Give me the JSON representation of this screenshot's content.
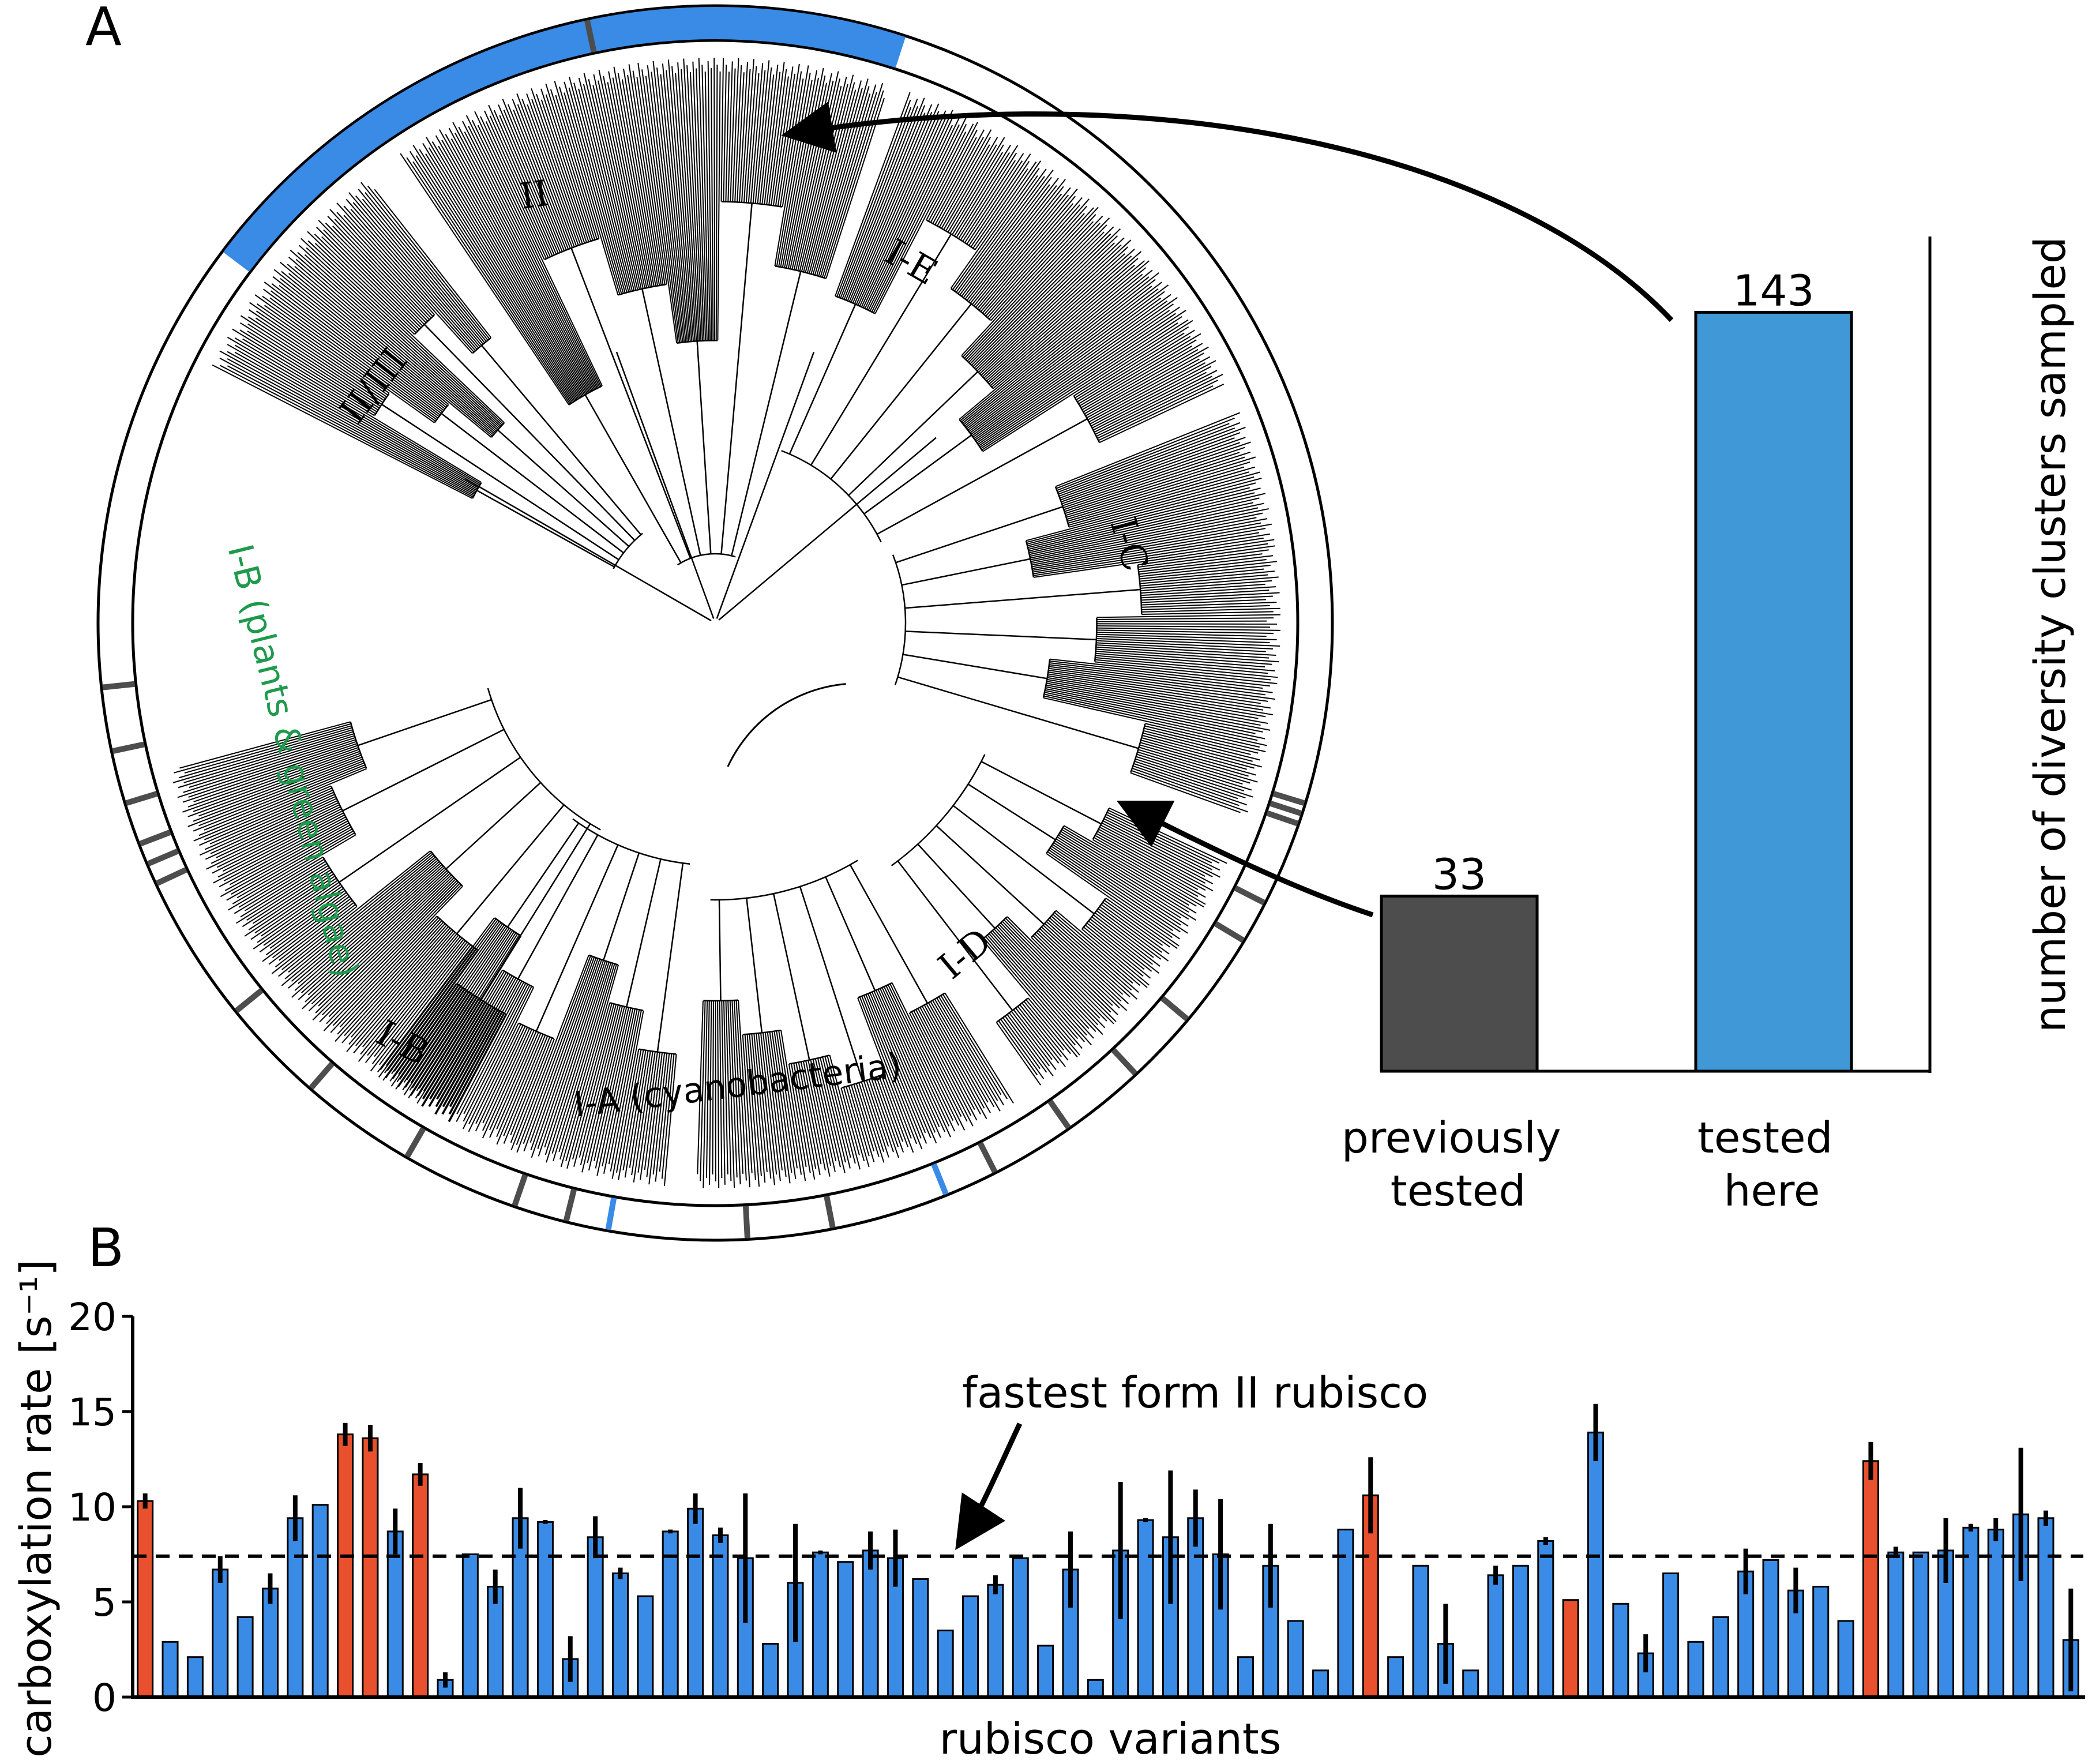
{
  "panel_a": {
    "letter": "A",
    "clade_labels": [
      "II",
      "II/III",
      "I-E",
      "I-C",
      "I-D",
      "I-B",
      "I-A (cyanobacteria)",
      "I-B (plants & green algae)"
    ],
    "colors": {
      "sampled_here": "#3a8be6",
      "previously_tested": "#4d4d4d",
      "plants_label": "#1f9a4c"
    }
  },
  "panel_b": {
    "letter": "B",
    "annotation": "fastest form II rubisco"
  },
  "chart_data": [
    {
      "type": "bar",
      "categories": [
        "previously tested",
        "tested here"
      ],
      "values": [
        33,
        143
      ],
      "data_labels": [
        "33",
        "143"
      ],
      "colors": [
        "#4d4d4d",
        "#4099d6"
      ],
      "ylabel": "number of diversity clusters sampled",
      "ylim": [
        0,
        150
      ]
    },
    {
      "type": "bar",
      "xlabel": "rubisco variants",
      "ylabel": "carboxylation rate [s⁻¹]",
      "ylim": [
        0,
        20
      ],
      "yticks": [
        0,
        5,
        10,
        15,
        20
      ],
      "reference_line": 7.4,
      "series_colors": {
        "r": "#e8502e",
        "b": "#3a8be6"
      },
      "values": [
        10.3,
        2.9,
        2.1,
        6.7,
        4.2,
        5.7,
        9.4,
        10.1,
        13.8,
        13.6,
        8.7,
        11.7,
        0.9,
        7.5,
        5.8,
        9.4,
        9.2,
        2.0,
        8.4,
        6.5,
        5.3,
        8.7,
        9.9,
        8.5,
        7.3,
        2.8,
        6.0,
        7.6,
        7.1,
        7.7,
        7.3,
        6.2,
        3.5,
        5.3,
        5.9,
        7.3,
        2.7,
        6.7,
        0.9,
        7.7,
        9.3,
        8.4,
        9.4,
        7.5,
        2.1,
        6.9,
        4.0,
        1.4,
        8.8,
        10.6,
        2.1,
        6.9,
        2.8,
        1.4,
        6.4,
        6.9,
        8.2,
        5.1,
        13.9,
        4.9,
        2.3,
        6.5,
        2.9,
        4.2,
        6.6,
        7.2,
        5.6,
        5.8,
        4.0,
        12.4,
        7.6,
        7.6,
        7.7,
        8.9,
        8.8,
        9.6,
        9.4,
        3.0
      ],
      "errors": [
        0.4,
        0,
        0,
        0.7,
        0,
        0.8,
        1.2,
        0,
        0.6,
        0.7,
        1.2,
        0.6,
        0.4,
        0,
        0.9,
        1.6,
        0.1,
        1.2,
        1.1,
        0.3,
        0,
        0.1,
        0.8,
        0.4,
        3.4,
        0,
        3.1,
        0.1,
        0,
        1.0,
        1.5,
        0,
        0,
        0,
        0.5,
        0,
        0,
        2.0,
        0,
        3.6,
        0.1,
        3.5,
        1.5,
        2.9,
        0,
        2.2,
        0,
        0,
        0,
        2.0,
        0,
        0,
        2.1,
        0,
        0.5,
        0,
        0.2,
        0,
        1.5,
        0,
        1.0,
        0,
        0,
        0,
        1.2,
        0,
        1.2,
        0,
        0,
        1.0,
        0.3,
        0,
        1.7,
        0.2,
        0.6,
        3.5,
        0.4,
        2.7
      ],
      "colors": "rbbbbbbbrrbrbbbbbbbbbbbbbbbbbbbbbbbbbbbbbbbbbbbbbrbbbbbbbrbbbbbbbbbbbrbbbbbbbb"
    }
  ]
}
